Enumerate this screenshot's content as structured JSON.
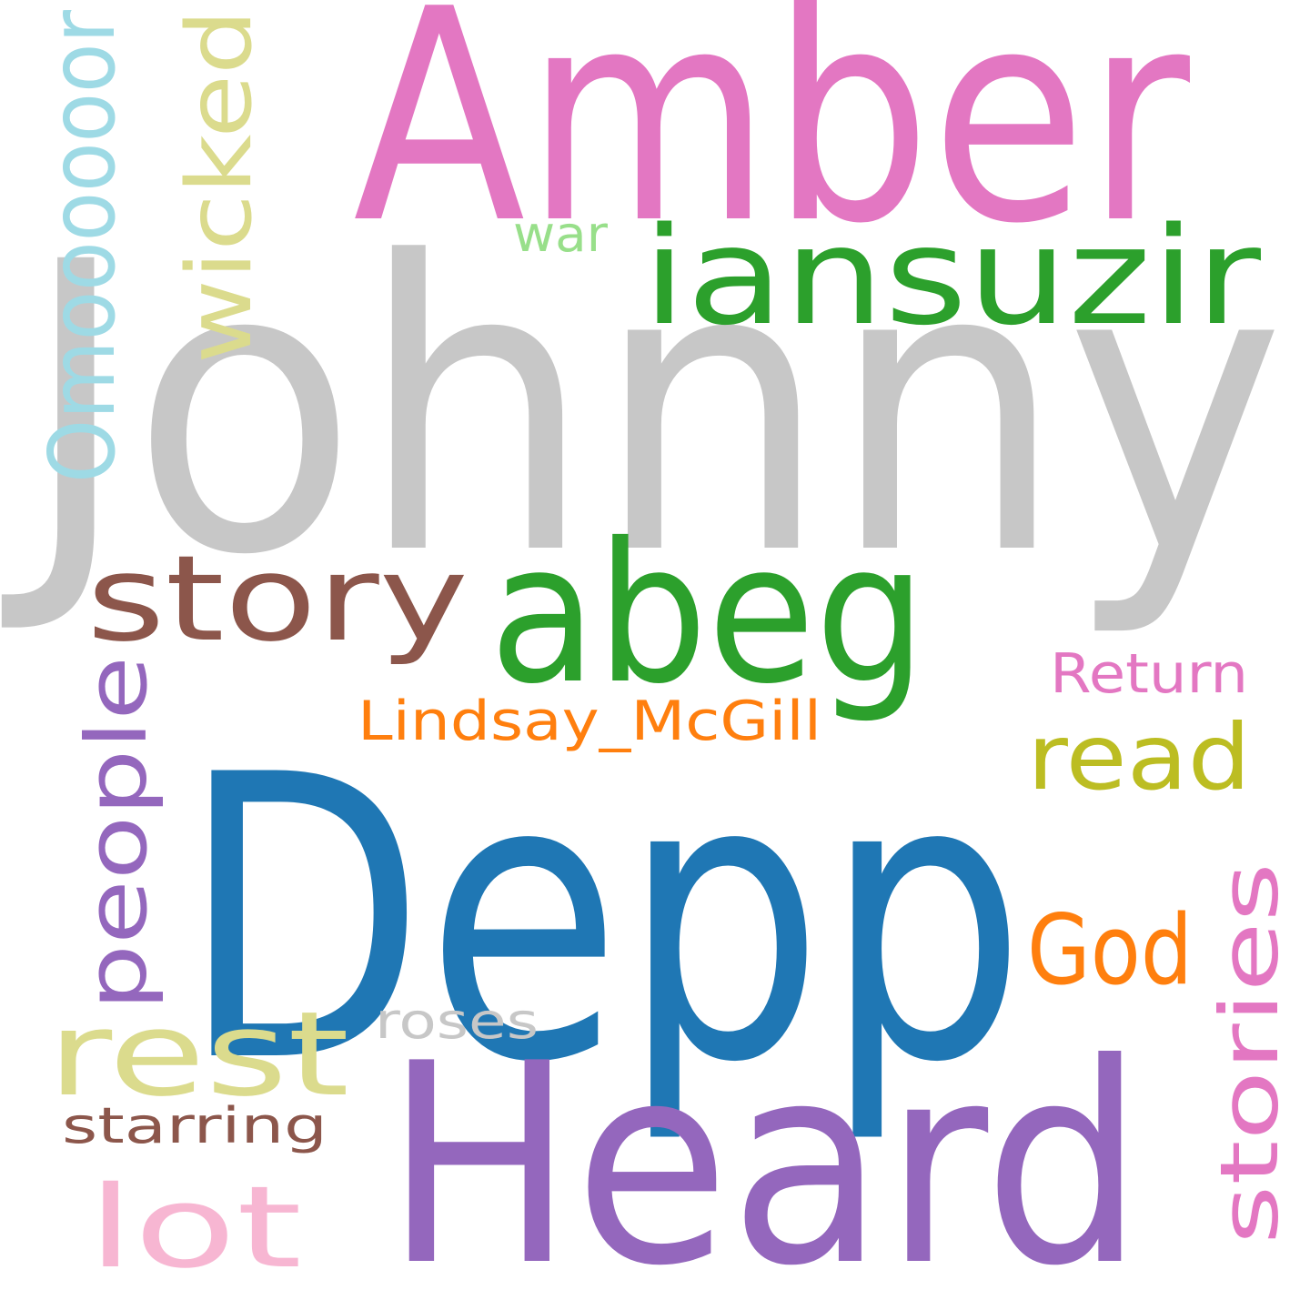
{
  "words": [
    {
      "id": "johnny",
      "text": "Johnny",
      "color": "#c7c7c7"
    },
    {
      "id": "depp",
      "text": "Depp",
      "color": "#1f77b4"
    },
    {
      "id": "amber",
      "text": "Amber",
      "color": "#e377c2"
    },
    {
      "id": "heard",
      "text": "Heard",
      "color": "#9467bd"
    },
    {
      "id": "iansuzir",
      "text": "iansuzir",
      "color": "#2ca02c"
    },
    {
      "id": "abeg",
      "text": "abeg",
      "color": "#2ca02c"
    },
    {
      "id": "story",
      "text": "story",
      "color": "#8c564b"
    },
    {
      "id": "wicked",
      "text": "wicked",
      "color": "#dbdb8d"
    },
    {
      "id": "omoooooor",
      "text": "Omoooooor",
      "color": "#9edae5"
    },
    {
      "id": "war",
      "text": "war",
      "color": "#98df8a"
    },
    {
      "id": "people",
      "text": "people",
      "color": "#9467bd"
    },
    {
      "id": "return",
      "text": "Return",
      "color": "#e377c2"
    },
    {
      "id": "lindsay",
      "text": "Lindsay_McGill",
      "color": "#ff7f0e"
    },
    {
      "id": "read",
      "text": "read",
      "color": "#bcbd22"
    },
    {
      "id": "god",
      "text": "God",
      "color": "#ff7f0e"
    },
    {
      "id": "stories",
      "text": "stories",
      "color": "#e377c2"
    },
    {
      "id": "rest",
      "text": "rest",
      "color": "#dbdb8d"
    },
    {
      "id": "roses",
      "text": "roses",
      "color": "#c7c7c7"
    },
    {
      "id": "starring",
      "text": "starring",
      "color": "#8c564b"
    },
    {
      "id": "lot",
      "text": "lot",
      "color": "#f7b6d2"
    }
  ]
}
